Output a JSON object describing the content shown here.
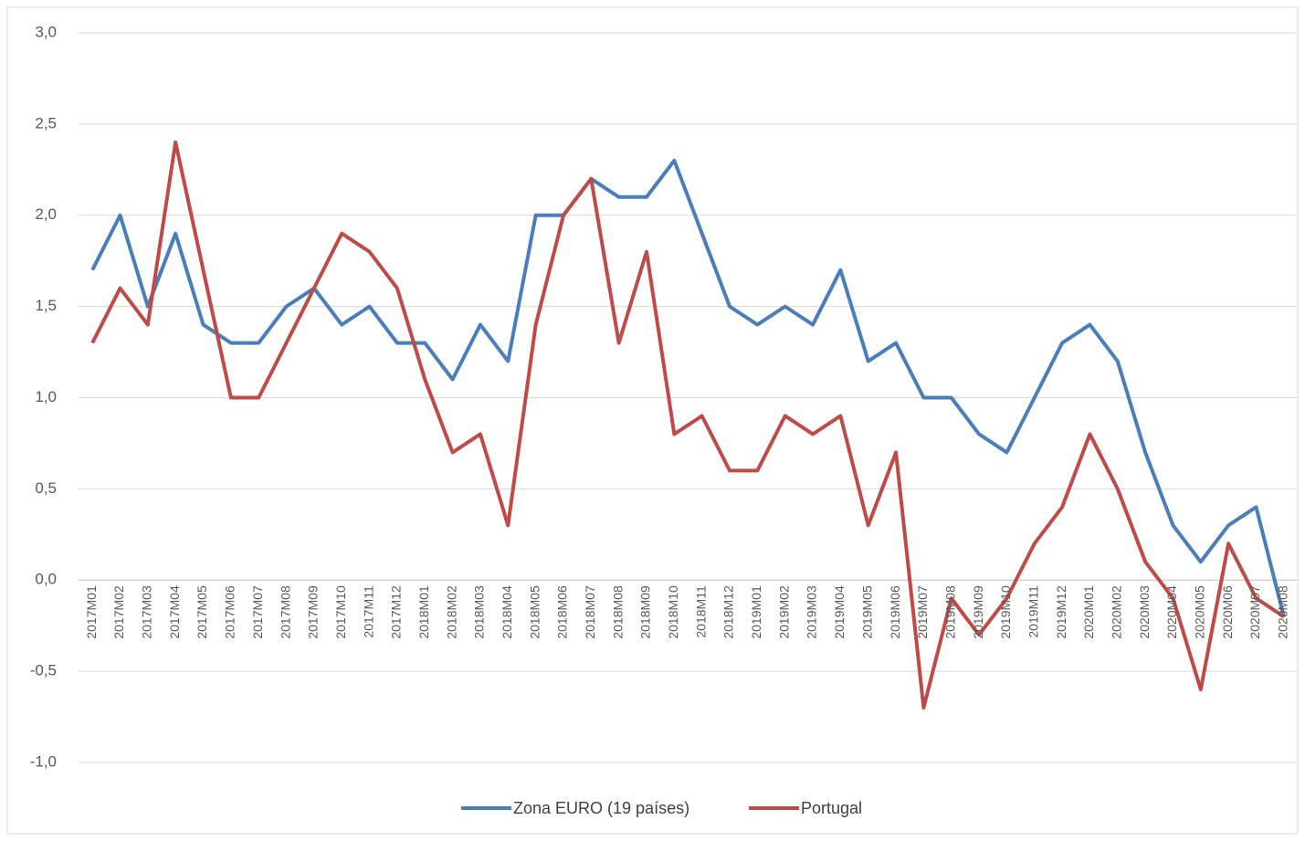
{
  "chart_data": {
    "type": "line",
    "categories": [
      "2017M01",
      "2017M02",
      "2017M03",
      "2017M04",
      "2017M05",
      "2017M06",
      "2017M07",
      "2017M08",
      "2017M09",
      "2017M10",
      "2017M11",
      "2017M12",
      "2018M01",
      "2018M02",
      "2018M03",
      "2018M04",
      "2018M05",
      "2018M06",
      "2018M07",
      "2018M08",
      "2018M09",
      "2018M10",
      "2018M11",
      "2018M12",
      "2019M01",
      "2019M02",
      "2019M03",
      "2019M04",
      "2019M05",
      "2019M06",
      "2019M07",
      "2019M08",
      "2019M09",
      "2019M10",
      "2019M11",
      "2019M12",
      "2020M01",
      "2020M02",
      "2020M03",
      "2020M04",
      "2020M05",
      "2020M06",
      "2020M07",
      "2020M08"
    ],
    "series": [
      {
        "name": "Zona EURO (19 países)",
        "color": "#4a7ebb",
        "values": [
          1.7,
          2.0,
          1.5,
          1.9,
          1.4,
          1.3,
          1.3,
          1.5,
          1.6,
          1.4,
          1.5,
          1.3,
          1.3,
          1.1,
          1.4,
          1.2,
          2.0,
          2.0,
          2.2,
          2.1,
          2.1,
          2.3,
          1.9,
          1.5,
          1.4,
          1.5,
          1.4,
          1.7,
          1.2,
          1.3,
          1.0,
          1.0,
          0.8,
          0.7,
          1.0,
          1.3,
          1.4,
          1.2,
          0.7,
          0.3,
          0.1,
          0.3,
          0.4,
          -0.2
        ]
      },
      {
        "name": "Portugal",
        "color": "#be4b48",
        "values": [
          1.3,
          1.6,
          1.4,
          2.4,
          1.7,
          1.0,
          1.0,
          1.3,
          1.6,
          1.9,
          1.8,
          1.6,
          1.1,
          0.7,
          0.8,
          0.3,
          1.4,
          2.0,
          2.2,
          1.3,
          1.8,
          0.8,
          0.9,
          0.6,
          0.6,
          0.9,
          0.8,
          0.9,
          0.3,
          0.7,
          -0.7,
          -0.1,
          -0.3,
          -0.1,
          0.2,
          0.4,
          0.8,
          0.5,
          0.1,
          -0.1,
          -0.6,
          0.2,
          -0.1,
          -0.2
        ]
      }
    ],
    "ylim": [
      -1,
      3
    ],
    "yticks": [
      {
        "value": -1,
        "label": "-1,0"
      },
      {
        "value": -0.5,
        "label": "-0,5"
      },
      {
        "value": 0,
        "label": "0,0"
      },
      {
        "value": 0.5,
        "label": "0,5"
      },
      {
        "value": 1,
        "label": "1,0"
      },
      {
        "value": 1.5,
        "label": "1,5"
      },
      {
        "value": 2,
        "label": "2,0"
      },
      {
        "value": 2.5,
        "label": "2,5"
      },
      {
        "value": 3,
        "label": "3,0"
      }
    ],
    "grid": true,
    "legend": "bottom"
  }
}
